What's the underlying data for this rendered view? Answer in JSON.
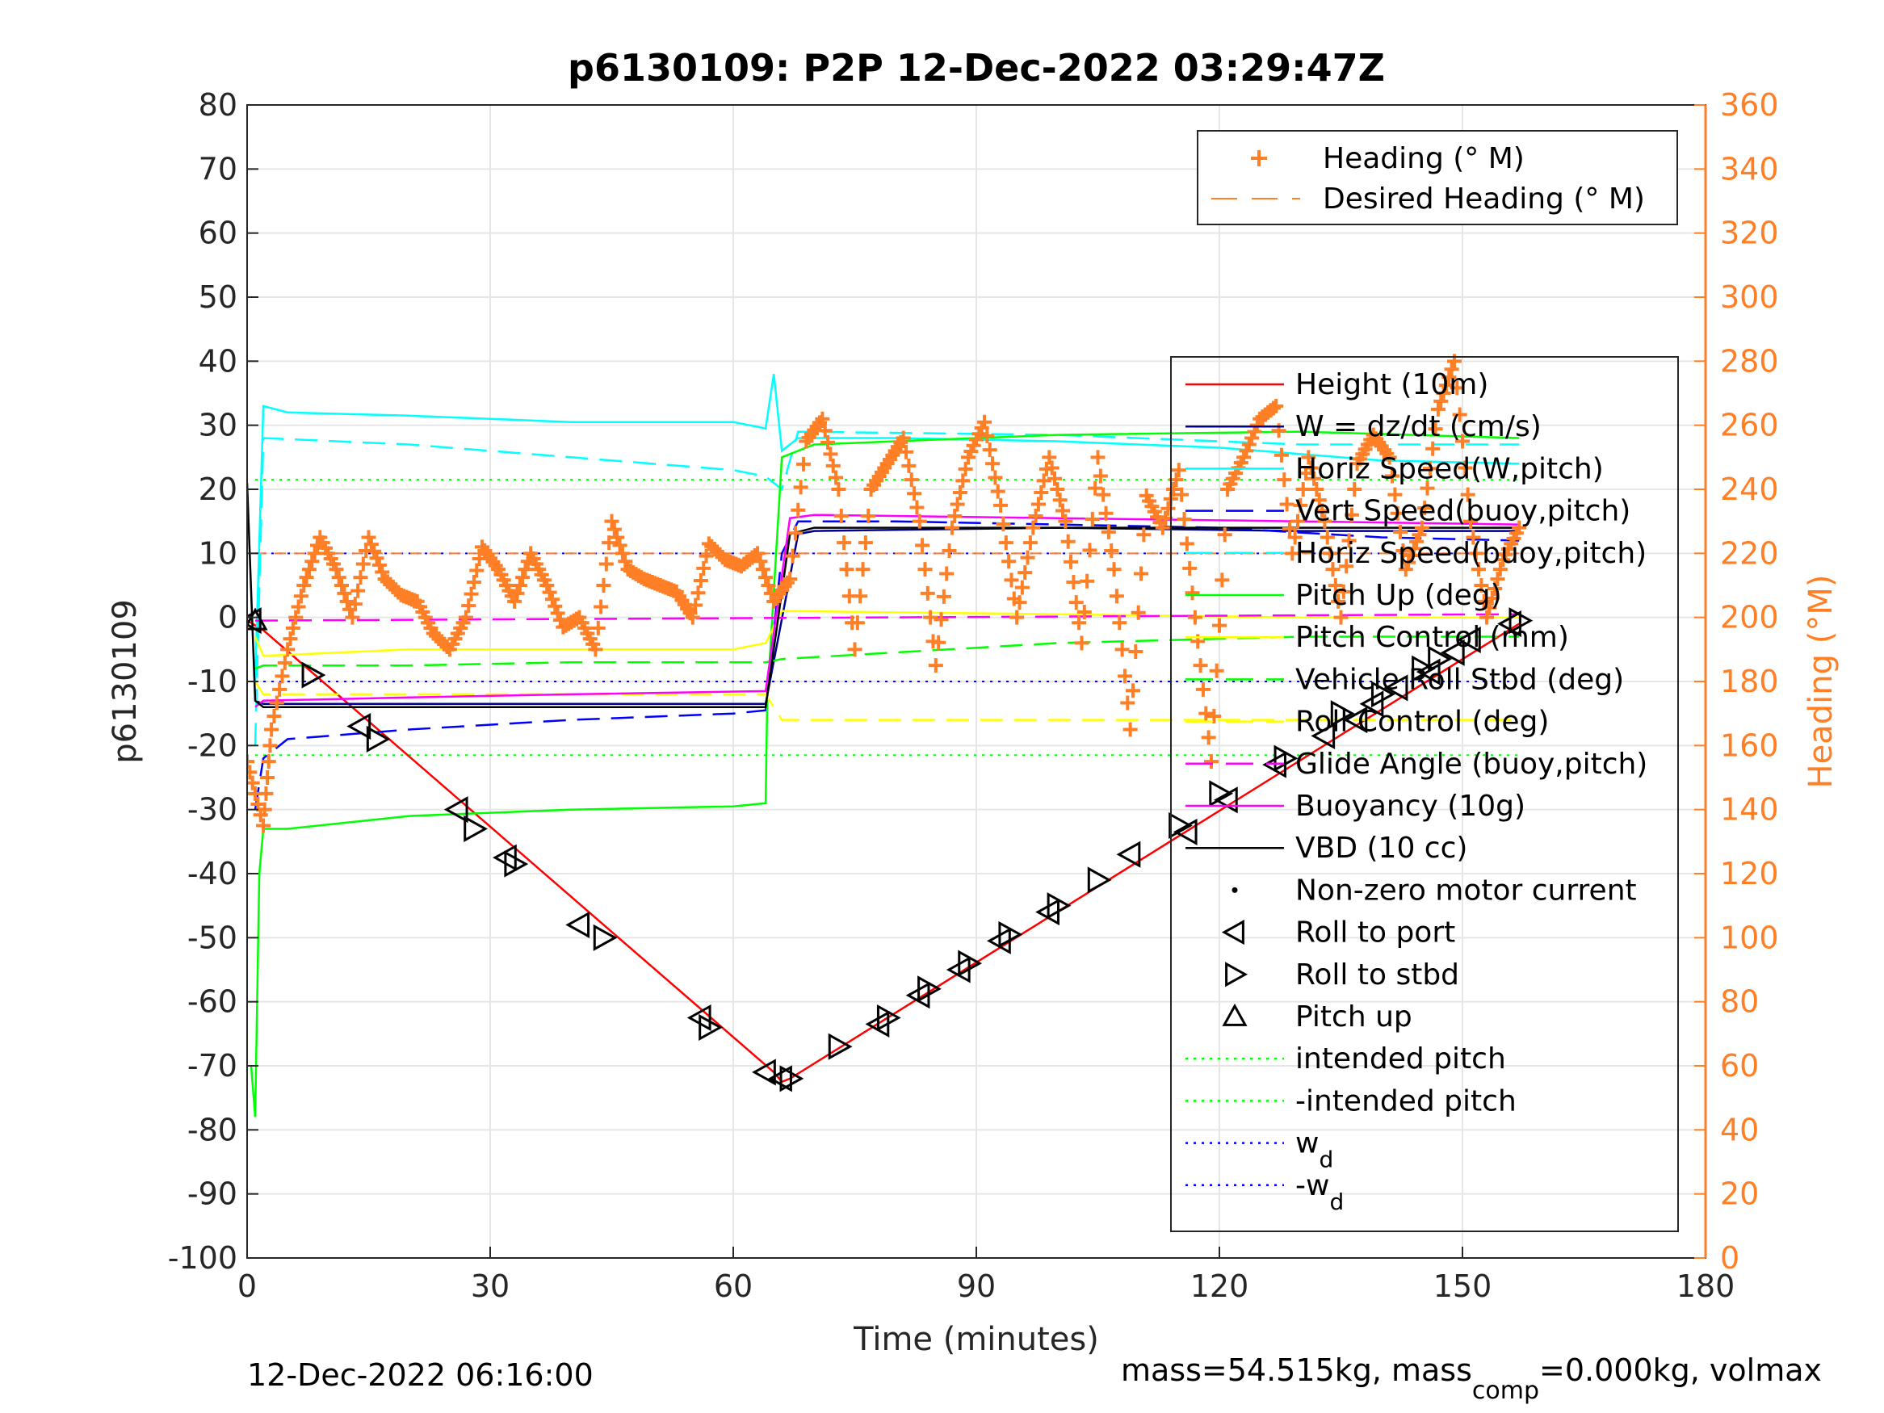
{
  "chart_data": {
    "type": "line",
    "title": "p6130109: P2P 12-Dec-2022 03:29:47Z",
    "xlabel": "Time (minutes)",
    "ylabel_left": "p6130109",
    "ylabel_right": "Heading (°M)",
    "xlim": [
      0,
      180
    ],
    "ylim_left": [
      -100,
      80
    ],
    "ylim_right": [
      0,
      360
    ],
    "x_ticks": [
      0,
      30,
      60,
      90,
      120,
      150,
      180
    ],
    "y_ticks_left": [
      -100,
      -90,
      -80,
      -70,
      -60,
      -50,
      -40,
      -30,
      -20,
      -10,
      0,
      10,
      20,
      30,
      40,
      50,
      60,
      70,
      80
    ],
    "y_ticks_right": [
      0,
      20,
      40,
      60,
      80,
      100,
      120,
      140,
      160,
      180,
      200,
      220,
      240,
      260,
      280,
      300,
      320,
      340,
      360
    ],
    "grid": true,
    "footer_left": "12-Dec-2022 06:16:00",
    "footer_right_main": "mass=54.515kg, mass",
    "footer_right_sub": "comp",
    "footer_right_tail": "=0.000kg, volmax",
    "colors": {
      "heading": "#ff7f27",
      "height": "#ff0000",
      "w": "#00008b",
      "horiz_speed_w": "#00ffff",
      "vert_speed_buoy": "#0000ff",
      "pitch_up": "#00ff00",
      "pitch_control": "#ffff00",
      "glide": "#ff00ff",
      "vbd": "#000000",
      "right_axis": "#ff7f27"
    },
    "legend_heading": [
      {
        "label": "Heading (° M)",
        "style": "plus"
      },
      {
        "label": "Desired Heading (° M)",
        "style": "dash"
      }
    ],
    "legend_main": [
      {
        "label": "Height (10m)",
        "color": "#ff0000",
        "style": "solid"
      },
      {
        "label": "W = dz/dt (cm/s)",
        "color": "#00008b",
        "style": "solid"
      },
      {
        "label": "Horiz Speed(W,pitch)",
        "color": "#00ffff",
        "style": "solid"
      },
      {
        "label": "Vert Speed(buoy,pitch)",
        "color": "#0000ff",
        "style": "dash"
      },
      {
        "label": "Horiz Speed(buoy,pitch)",
        "color": "#00ffff",
        "style": "dash"
      },
      {
        "label": "Pitch Up (deg)",
        "color": "#00ff00",
        "style": "solid"
      },
      {
        "label": "Pitch Control (mm)",
        "color": "#ffff00",
        "style": "solid"
      },
      {
        "label": "Vehicle Roll Stbd (deg)",
        "color": "#00ff00",
        "style": "dash"
      },
      {
        "label": "Roll Control (deg)",
        "color": "#ffff00",
        "style": "dash"
      },
      {
        "label": "Glide Angle (buoy,pitch)",
        "color": "#ff00ff",
        "style": "dash"
      },
      {
        "label": "Buoyancy (10g)",
        "color": "#ff00ff",
        "style": "solid"
      },
      {
        "label": "VBD (10 cc)",
        "color": "#000000",
        "style": "solid"
      },
      {
        "label": "Non-zero motor current",
        "color": "#000000",
        "style": "dot"
      },
      {
        "label": "Roll to port",
        "color": "#000000",
        "style": "tri-left"
      },
      {
        "label": "Roll to stbd",
        "color": "#000000",
        "style": "tri-right"
      },
      {
        "label": "Pitch up",
        "color": "#000000",
        "style": "tri-up"
      },
      {
        "label": "intended pitch",
        "color": "#00ff00",
        "style": "dotted"
      },
      {
        "label": "-intended pitch",
        "color": "#00ff00",
        "style": "dotted"
      },
      {
        "label": "w",
        "sub": "d",
        "color": "#0000ff",
        "style": "dotted"
      },
      {
        "label": "-w",
        "sub": "d",
        "color": "#0000ff",
        "style": "dotted"
      }
    ],
    "series": [
      {
        "name": "Height (10m)",
        "x": [
          0,
          2,
          65,
          66,
          67,
          157
        ],
        "y": [
          -0.5,
          -2,
          -71,
          -72.5,
          -72,
          -1
        ]
      },
      {
        "name": "W = dz/dt (cm/s)",
        "x": [
          1,
          2,
          10,
          30,
          50,
          64,
          68,
          70,
          100,
          130,
          157
        ],
        "y": [
          -13,
          -13.5,
          -13.5,
          -13.5,
          -13.5,
          -13.5,
          13,
          13.5,
          14,
          13.5,
          13.5
        ]
      },
      {
        "name": "Horiz Speed(W,pitch)",
        "x": [
          1,
          2,
          5,
          20,
          40,
          60,
          64,
          65,
          66,
          68,
          80,
          100,
          120,
          140,
          157
        ],
        "y": [
          -10,
          33,
          32,
          31.5,
          30.5,
          30.5,
          29.5,
          38,
          26,
          28,
          28,
          27.5,
          26.5,
          24.5,
          24
        ]
      },
      {
        "name": "Vert Speed(buoy,pitch)",
        "x": [
          1,
          2,
          5,
          20,
          40,
          60,
          64,
          66,
          68,
          80,
          100,
          120,
          140,
          157
        ],
        "y": [
          -30,
          -22,
          -19,
          -17.5,
          -16,
          -15,
          -14.5,
          10,
          15,
          15,
          14.5,
          14,
          12.5,
          12
        ]
      },
      {
        "name": "Horiz Speed(buoy,pitch)",
        "x": [
          1,
          2,
          20,
          40,
          60,
          64,
          66,
          68,
          100,
          130,
          157
        ],
        "y": [
          -20,
          28,
          27,
          25,
          23,
          22,
          20,
          29,
          28.5,
          27,
          27
        ]
      },
      {
        "name": "Pitch Up (deg)",
        "x": [
          0.5,
          1,
          1.5,
          2,
          5,
          20,
          40,
          60,
          64,
          64.2,
          66,
          70,
          100,
          130,
          157
        ],
        "y": [
          -70,
          -78,
          -40,
          -33,
          -33,
          -31,
          -30,
          -29.5,
          -29,
          -13,
          25,
          27,
          28.5,
          29,
          28
        ]
      },
      {
        "name": "Pitch Control (mm)",
        "x": [
          1,
          2,
          20,
          40,
          60,
          64,
          66,
          100,
          130,
          157
        ],
        "y": [
          -3,
          -6,
          -5,
          -5,
          -5,
          -4,
          1,
          0.5,
          0,
          0
        ]
      },
      {
        "name": "Vehicle Roll Stbd (deg)",
        "x": [
          1,
          2,
          20,
          40,
          60,
          64,
          66,
          100,
          130,
          157
        ],
        "y": [
          -8,
          -7.5,
          -7.5,
          -7,
          -7,
          -7,
          -6.5,
          -4,
          -3,
          -3
        ]
      },
      {
        "name": "Roll Control (deg)",
        "x": [
          1,
          2,
          20,
          40,
          60,
          64,
          66,
          100,
          130,
          157
        ],
        "y": [
          -10,
          -12,
          -12,
          -12,
          -12,
          -12,
          -16,
          -16,
          -16,
          -16
        ]
      },
      {
        "name": "Glide Angle (buoy,pitch)",
        "x": [
          1,
          157
        ],
        "y": [
          -0.5,
          0.5
        ]
      },
      {
        "name": "Buoyancy (10g)",
        "x": [
          1,
          2,
          20,
          40,
          64,
          67,
          70,
          100,
          130,
          157
        ],
        "y": [
          -14,
          -13,
          -12.5,
          -12,
          -11.5,
          15.5,
          16,
          15.5,
          15,
          14.5
        ]
      },
      {
        "name": "VBD (10 cc)",
        "x": [
          0,
          1,
          2,
          64,
          67,
          70,
          157
        ],
        "y": [
          21,
          -13,
          -14,
          -14,
          13,
          14,
          14
        ]
      }
    ],
    "heading_points": {
      "x": [
        0,
        2,
        3,
        5,
        7,
        9,
        11,
        13,
        15,
        17,
        19,
        21,
        23,
        25,
        27,
        29,
        31,
        33,
        35,
        37,
        39,
        41,
        43,
        45,
        47,
        49,
        51,
        53,
        55,
        57,
        59,
        61,
        63,
        65,
        67,
        69,
        71,
        73,
        75,
        77,
        79,
        81,
        83,
        85,
        87,
        89,
        91,
        93,
        95,
        97,
        99,
        101,
        103,
        105,
        107,
        109,
        111,
        113,
        115,
        117,
        119,
        121,
        123,
        125,
        127,
        129,
        131,
        133,
        135,
        137,
        139,
        141,
        143,
        145,
        147,
        149,
        151,
        153,
        155,
        157
      ],
      "y": [
        155,
        135,
        165,
        190,
        210,
        225,
        215,
        200,
        225,
        212,
        207,
        205,
        195,
        190,
        200,
        222,
        215,
        205,
        220,
        210,
        197,
        200,
        190,
        230,
        215,
        212,
        210,
        208,
        200,
        223,
        218,
        216,
        220,
        205,
        212,
        255,
        262,
        240,
        190,
        240,
        248,
        256,
        230,
        185,
        228,
        250,
        261,
        235,
        200,
        228,
        250,
        230,
        192,
        250,
        215,
        165,
        238,
        228,
        246,
        200,
        155,
        240,
        250,
        262,
        266,
        220,
        250,
        230,
        200,
        248,
        257,
        250,
        215,
        228,
        265,
        280,
        230,
        200,
        218,
        228
      ]
    },
    "desired_heading": 220,
    "intended_pitch": 21.5,
    "wd": 10,
    "pitch_markers_x": [
      1
    ],
    "roll_port_markers": {
      "x": [
        0.5,
        14,
        26,
        32,
        41,
        56,
        64,
        66,
        78,
        83,
        88,
        93,
        99,
        109,
        116,
        121,
        127,
        133,
        137,
        139,
        142,
        146,
        149,
        151,
        156
      ],
      "y": [
        -0.5,
        -17,
        -30,
        -37.5,
        -48,
        -62.5,
        -71,
        -72,
        -63.5,
        -59,
        -55,
        -50.5,
        -46,
        -37,
        -33.5,
        -28.5,
        -23,
        -18.5,
        -16,
        -13.5,
        -11,
        -8.5,
        -5.5,
        -3.5,
        -1
      ]
    },
    "roll_stbd_markers": {
      "x": [
        8,
        16,
        28,
        33,
        44,
        57,
        67,
        73,
        79,
        84,
        89,
        94,
        100,
        105,
        115,
        120,
        128,
        135,
        140,
        145,
        147,
        157
      ],
      "y": [
        -9,
        -19,
        -33,
        -38.5,
        -50,
        -64,
        -72,
        -67,
        -62.5,
        -58,
        -54,
        -49.5,
        -45,
        -41,
        -32.5,
        -27.5,
        -22,
        -15,
        -12,
        -8,
        -6.5,
        -0.5
      ]
    }
  }
}
